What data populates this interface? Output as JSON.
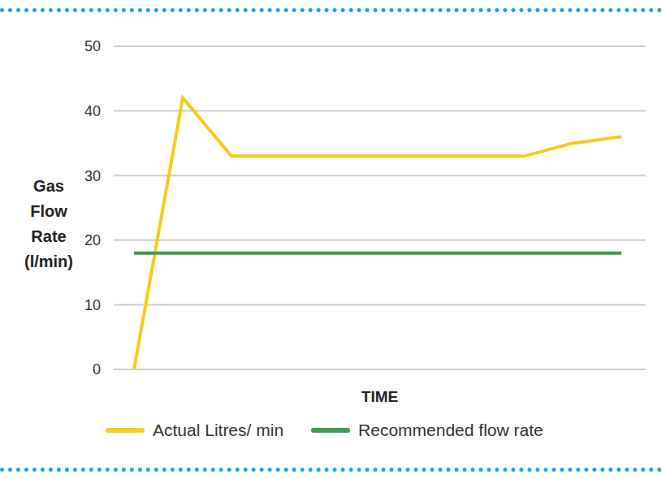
{
  "chart_data": {
    "type": "line",
    "x_label": "TIME",
    "y_label": "Gas Flow Rate (l/min)",
    "categories": [
      null,
      null,
      null,
      null,
      null,
      null,
      null,
      null,
      null,
      null,
      null
    ],
    "series": [
      {
        "name": "Actual Litres/ min",
        "color": "#f5cc1a",
        "values": [
          0,
          42,
          33,
          33,
          33,
          33,
          33,
          33,
          33,
          35,
          36
        ]
      },
      {
        "name": "Recommended flow rate",
        "color": "#3d9b4c",
        "values": [
          18,
          18,
          18,
          18,
          18,
          18,
          18,
          18,
          18,
          18,
          18
        ]
      }
    ],
    "ylim": [
      0,
      50
    ],
    "yticks": [
      0,
      10,
      20,
      30,
      40,
      50
    ],
    "grid": true,
    "legend": "bottom",
    "tick_labels": "y"
  }
}
